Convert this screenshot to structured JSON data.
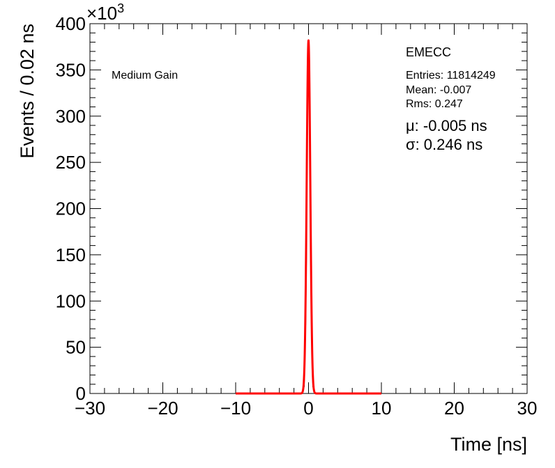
{
  "chart_data": {
    "type": "line",
    "xlabel": "Time [ns]",
    "ylabel": "Events / 0.02 ns",
    "y_multiplier_label": "×10",
    "y_multiplier_exp": "3",
    "xlim": [
      -30,
      30
    ],
    "ylim": [
      0,
      400
    ],
    "x_ticks": [
      -30,
      -20,
      -10,
      0,
      10,
      20,
      30
    ],
    "x_tick_labels": [
      "−30",
      "−20",
      "−10",
      "0",
      "10",
      "20",
      "30"
    ],
    "y_ticks": [
      0,
      50,
      100,
      150,
      200,
      250,
      300,
      350,
      400
    ],
    "y_tick_labels": [
      "0",
      "50",
      "100",
      "150",
      "200",
      "250",
      "300",
      "350",
      "400"
    ],
    "grid": false,
    "annotations": {
      "gain": "Medium Gain",
      "detector": "EMECC",
      "entries": "Entries: 11814249",
      "mean": "Mean: -0.007",
      "rms": "Rms: 0.247",
      "mu": "μ: -0.005 ns",
      "sigma": "σ: 0.246 ns"
    },
    "histogram": {
      "color": "#000000",
      "x": [
        -1.0,
        -0.8,
        -0.6,
        -0.4,
        -0.3,
        -0.2,
        -0.15,
        -0.1,
        -0.05,
        0.0,
        0.05,
        0.1,
        0.15,
        0.2,
        0.3,
        0.4,
        0.6,
        0.8,
        1.0
      ],
      "y": [
        0,
        1,
        8,
        75,
        145,
        270,
        318,
        352,
        372,
        382,
        372,
        352,
        318,
        270,
        145,
        75,
        8,
        1,
        0
      ]
    },
    "fit": {
      "color": "#ff0000",
      "mu": -0.005,
      "sigma": 0.246,
      "peak": 382,
      "range": [
        -10,
        10
      ]
    }
  }
}
